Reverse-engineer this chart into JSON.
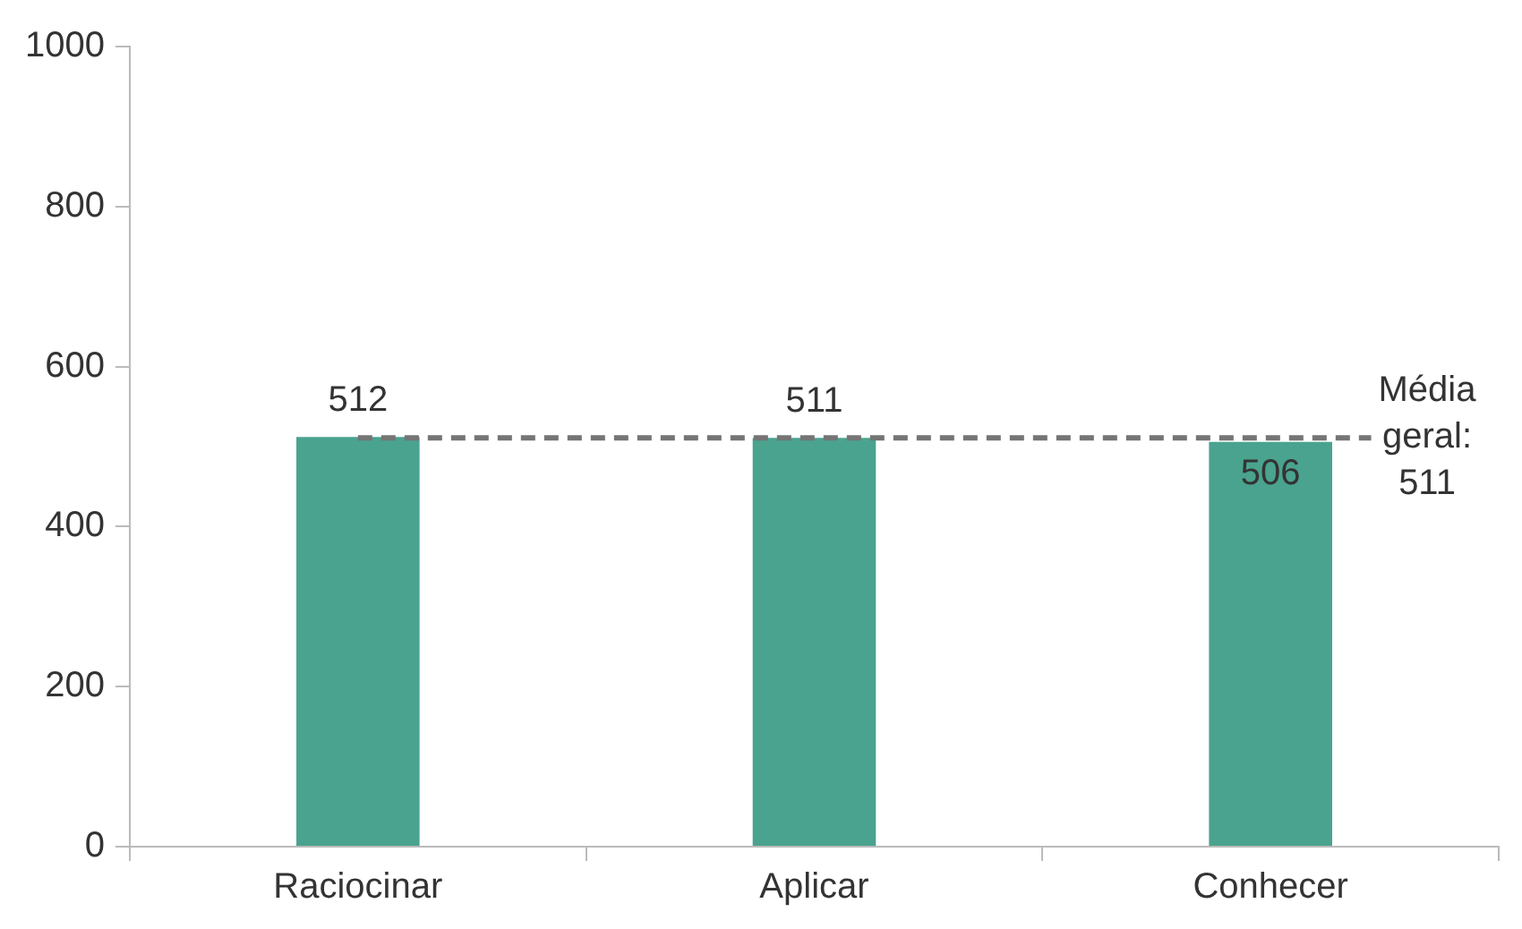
{
  "chart_data": {
    "type": "bar",
    "categories": [
      "Raciocinar",
      "Aplicar",
      "Conhecer"
    ],
    "values": [
      512,
      511,
      506
    ],
    "color": "#4aa38e",
    "ylim": [
      0,
      1000
    ],
    "yticks": [
      0,
      200,
      400,
      600,
      800,
      1000
    ],
    "grid": false,
    "legend": false,
    "data_labels": true,
    "ref_lines": [
      {
        "axis": "y",
        "value": 511,
        "label": "Média geral: 511",
        "color": "#757575",
        "line_style": "dashed"
      }
    ]
  }
}
